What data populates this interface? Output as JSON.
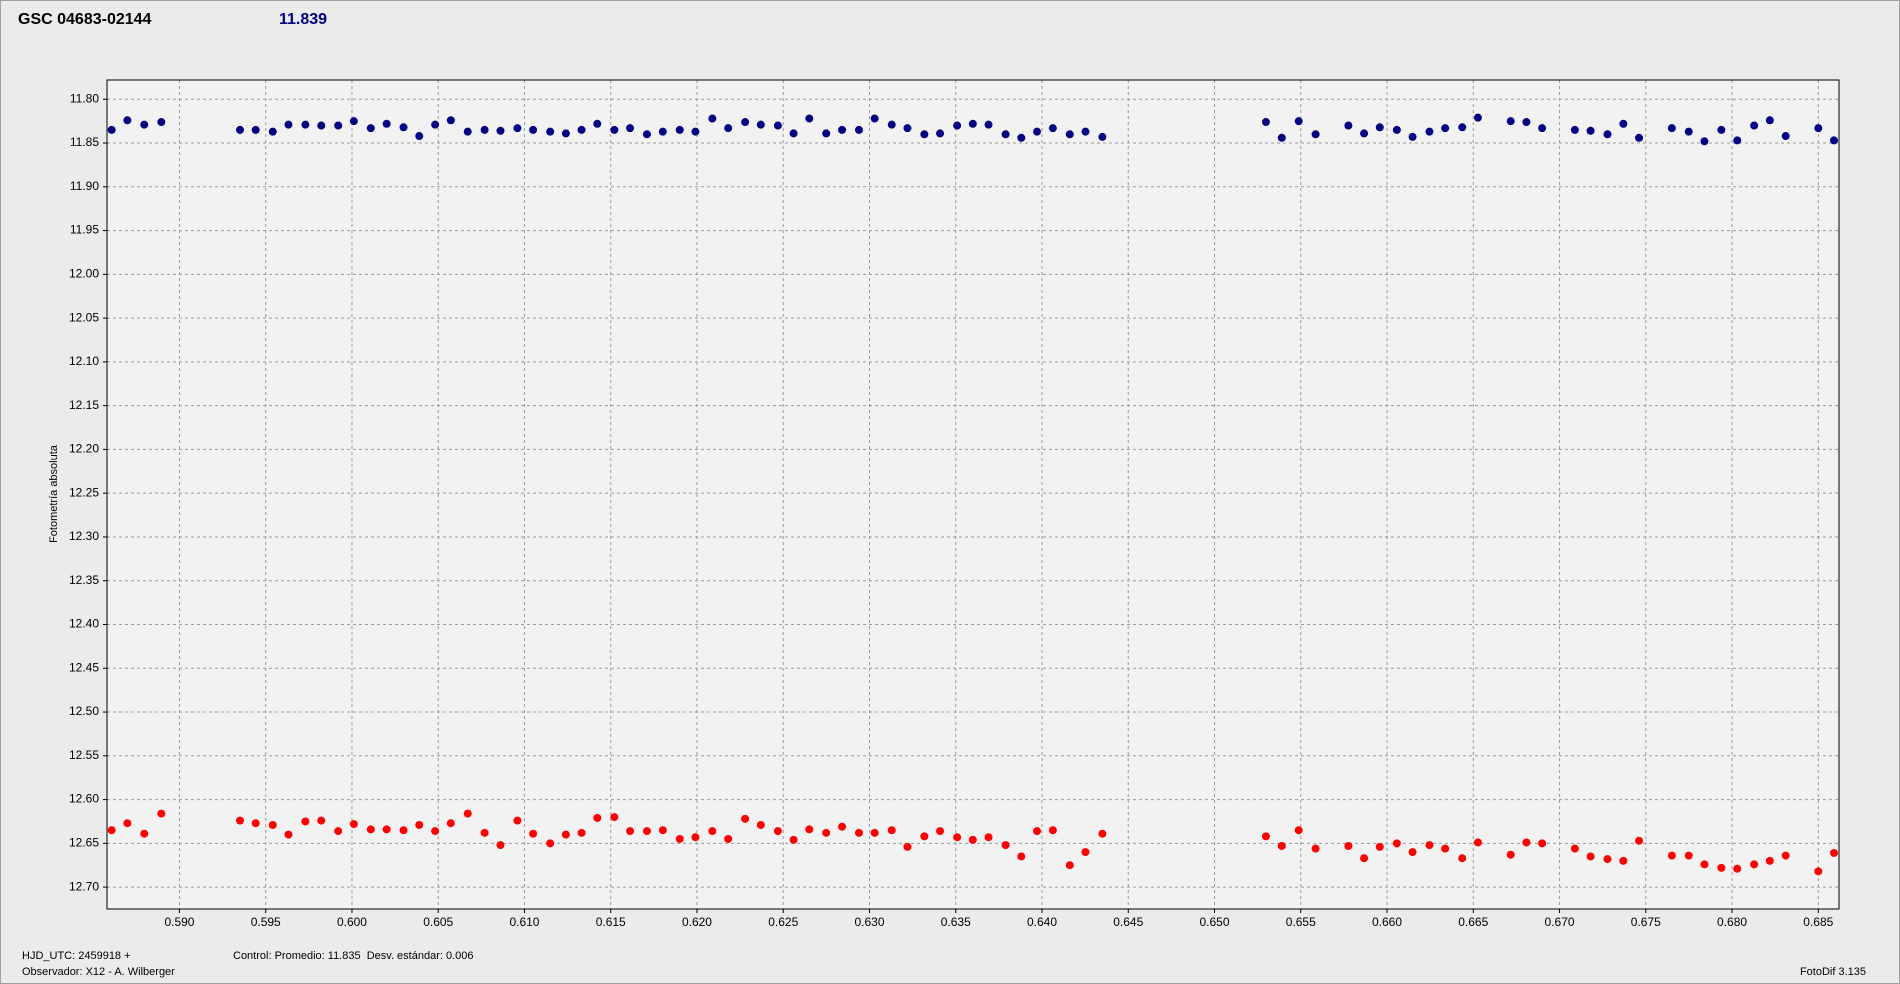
{
  "chart_data": {
    "type": "scatter",
    "title": "GSC 04683-02144",
    "subtitle": "11.839",
    "y_label": "Fotometría absoluta",
    "footer": {
      "hjd": "HJD_UTC: 2459918 +",
      "observer": "Observador: X12 - A. Wilberger",
      "control": "Control: Promedio: 11.835  Desv. estándar: 0.006",
      "software": "FotoDif 3.135"
    },
    "grid": true,
    "xlim": [
      0.5858,
      0.6862
    ],
    "ylim": [
      12.725,
      11.778
    ],
    "xticks": [
      {
        "value": 0.59,
        "label": "0.590"
      },
      {
        "value": 0.595,
        "label": "0.595"
      },
      {
        "value": 0.6,
        "label": "0.600"
      },
      {
        "value": 0.605,
        "label": "0.605"
      },
      {
        "value": 0.61,
        "label": "0.610"
      },
      {
        "value": 0.615,
        "label": "0.615"
      },
      {
        "value": 0.62,
        "label": "0.620"
      },
      {
        "value": 0.625,
        "label": "0.625"
      },
      {
        "value": 0.63,
        "label": "0.630"
      },
      {
        "value": 0.635,
        "label": "0.635"
      },
      {
        "value": 0.64,
        "label": "0.640"
      },
      {
        "value": 0.645,
        "label": "0.645"
      },
      {
        "value": 0.65,
        "label": "0.650"
      },
      {
        "value": 0.655,
        "label": "0.655"
      },
      {
        "value": 0.66,
        "label": "0.660"
      },
      {
        "value": 0.665,
        "label": "0.665"
      },
      {
        "value": 0.67,
        "label": "0.670"
      },
      {
        "value": 0.675,
        "label": "0.675"
      },
      {
        "value": 0.68,
        "label": "0.680"
      },
      {
        "value": 0.685,
        "label": "0.685"
      }
    ],
    "yticks": [
      {
        "value": 11.8,
        "label": "11.80"
      },
      {
        "value": 11.85,
        "label": "11.85"
      },
      {
        "value": 11.9,
        "label": "11.90"
      },
      {
        "value": 11.95,
        "label": "11.95"
      },
      {
        "value": 12.0,
        "label": "12.00"
      },
      {
        "value": 12.05,
        "label": "12.05"
      },
      {
        "value": 12.1,
        "label": "12.10"
      },
      {
        "value": 12.15,
        "label": "12.15"
      },
      {
        "value": 12.2,
        "label": "12.20"
      },
      {
        "value": 12.25,
        "label": "12.25"
      },
      {
        "value": 12.3,
        "label": "12.30"
      },
      {
        "value": 12.35,
        "label": "12.35"
      },
      {
        "value": 12.4,
        "label": "12.40"
      },
      {
        "value": 12.45,
        "label": "12.45"
      },
      {
        "value": 12.5,
        "label": "12.50"
      },
      {
        "value": 12.55,
        "label": "12.55"
      },
      {
        "value": 12.6,
        "label": "12.60"
      },
      {
        "value": 12.65,
        "label": "12.65"
      },
      {
        "value": 12.7,
        "label": "12.70"
      }
    ],
    "x": [
      0.58607,
      0.58698,
      0.58796,
      0.58895,
      0.59351,
      0.59442,
      0.59541,
      0.59632,
      0.5973,
      0.59822,
      0.5992,
      0.60011,
      0.60109,
      0.60201,
      0.60299,
      0.6039,
      0.60482,
      0.60573,
      0.60671,
      0.60769,
      0.60861,
      0.60959,
      0.6105,
      0.61149,
      0.6124,
      0.61331,
      0.61422,
      0.61521,
      0.61612,
      0.6171,
      0.61802,
      0.619,
      0.61991,
      0.62089,
      0.62181,
      0.62279,
      0.6237,
      0.62469,
      0.6256,
      0.62651,
      0.62749,
      0.62841,
      0.62939,
      0.6303,
      0.63129,
      0.6322,
      0.63318,
      0.63409,
      0.63508,
      0.63599,
      0.6369,
      0.63789,
      0.6388,
      0.63971,
      0.64063,
      0.64161,
      0.64252,
      0.6435,
      0.65298,
      0.6539,
      0.65488,
      0.65586,
      0.65776,
      0.65867,
      0.65958,
      0.66057,
      0.66148,
      0.66246,
      0.66337,
      0.66436,
      0.66527,
      0.66717,
      0.66808,
      0.66899,
      0.67089,
      0.6718,
      0.67278,
      0.6737,
      0.67461,
      0.67651,
      0.67749,
      0.6784,
      0.67938,
      0.6803,
      0.68128,
      0.68219,
      0.68311,
      0.685,
      0.68591
    ],
    "series": [
      {
        "color": "#000080",
        "values": [
          11.835,
          11.824,
          11.829,
          11.826,
          11.835,
          11.835,
          11.837,
          11.829,
          11.829,
          11.83,
          11.83,
          11.825,
          11.833,
          11.828,
          11.832,
          11.842,
          11.829,
          11.824,
          11.837,
          11.835,
          11.836,
          11.833,
          11.835,
          11.837,
          11.839,
          11.835,
          11.828,
          11.835,
          11.833,
          11.84,
          11.837,
          11.835,
          11.837,
          11.822,
          11.833,
          11.826,
          11.829,
          11.83,
          11.839,
          11.822,
          11.839,
          11.835,
          11.835,
          11.822,
          11.829,
          11.833,
          11.84,
          11.839,
          11.83,
          11.828,
          11.829,
          11.84,
          11.844,
          11.837,
          11.833,
          11.84,
          11.837,
          11.843,
          11.826,
          11.844,
          11.825,
          11.84,
          11.83,
          11.839,
          11.832,
          11.835,
          11.843,
          11.837,
          11.833,
          11.832,
          11.821,
          11.825,
          11.826,
          11.833,
          11.835,
          11.836,
          11.84,
          11.828,
          11.844,
          11.833,
          11.837,
          11.848,
          11.835,
          11.847,
          11.83,
          11.824,
          11.842,
          11.833,
          11.847
        ]
      },
      {
        "color": "#ff0000",
        "values": [
          12.635,
          12.627,
          12.639,
          12.616,
          12.624,
          12.627,
          12.629,
          12.64,
          12.625,
          12.624,
          12.636,
          12.628,
          12.634,
          12.634,
          12.635,
          12.629,
          12.636,
          12.627,
          12.616,
          12.638,
          12.652,
          12.624,
          12.639,
          12.65,
          12.64,
          12.638,
          12.621,
          12.62,
          12.636,
          12.636,
          12.635,
          12.645,
          12.643,
          12.636,
          12.645,
          12.622,
          12.629,
          12.636,
          12.646,
          12.634,
          12.638,
          12.631,
          12.638,
          12.638,
          12.635,
          12.654,
          12.642,
          12.636,
          12.643,
          12.646,
          12.643,
          12.652,
          12.665,
          12.636,
          12.635,
          12.675,
          12.66,
          12.639,
          12.642,
          12.653,
          12.635,
          12.656,
          12.653,
          12.667,
          12.654,
          12.65,
          12.66,
          12.652,
          12.656,
          12.667,
          12.649,
          12.663,
          12.649,
          12.65,
          12.656,
          12.665,
          12.668,
          12.67,
          12.647,
          12.664,
          12.664,
          12.674,
          12.678,
          12.679,
          12.674,
          12.67,
          12.664,
          12.682,
          12.661
        ]
      }
    ]
  }
}
